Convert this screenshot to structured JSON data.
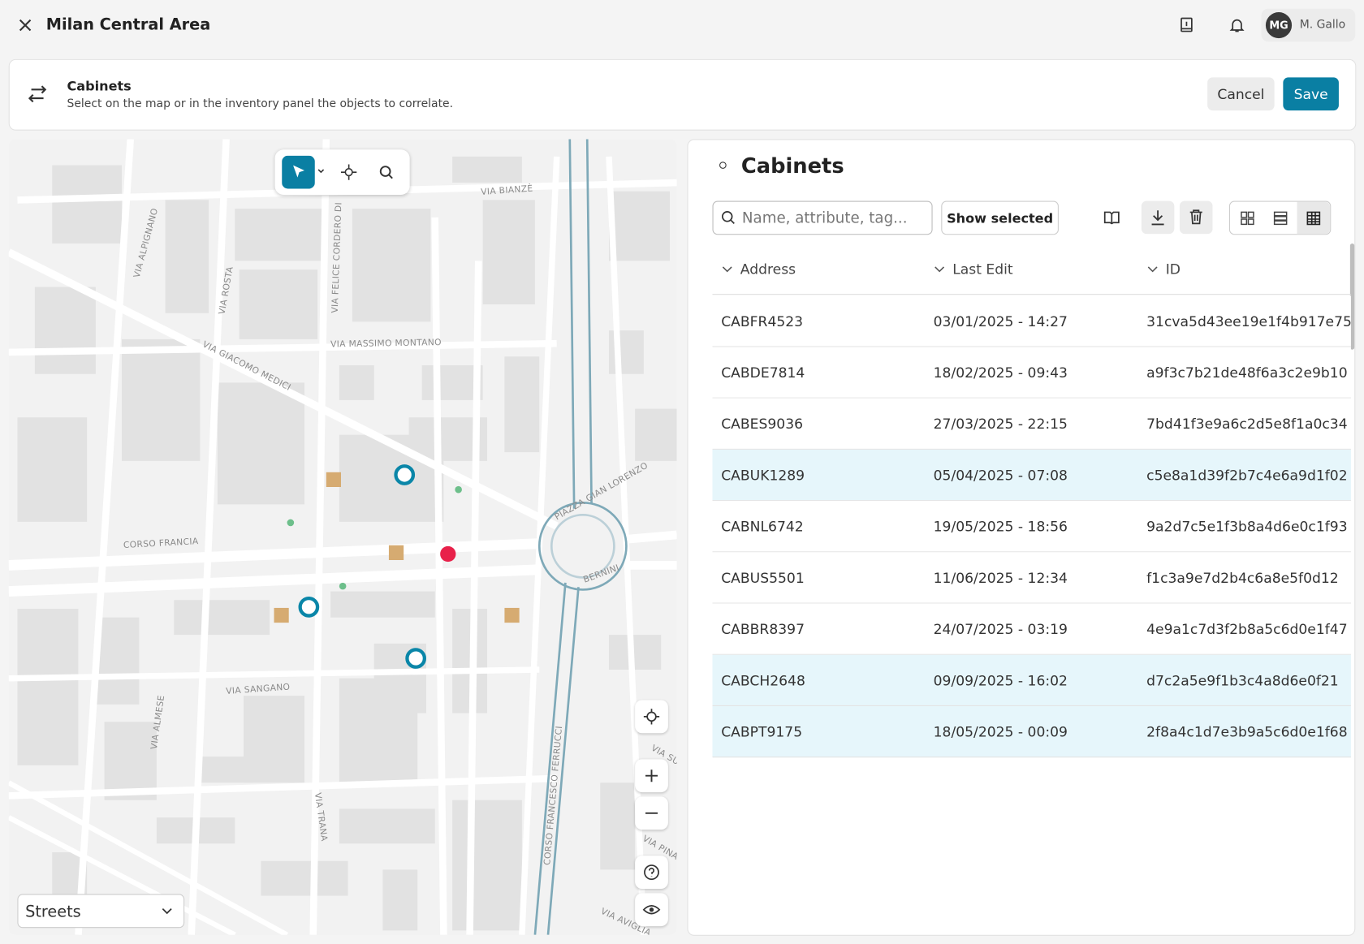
{
  "header": {
    "title": "Milan Central Area",
    "user_initials": "MG",
    "user_name": "M. Gallo"
  },
  "banner": {
    "title": "Cabinets",
    "subtitle": "Select on the map or in the inventory panel the objects to correlate.",
    "cancel": "Cancel",
    "save": "Save"
  },
  "map": {
    "labels": [
      "VIA BIANZÈ",
      "VIA ALPIGNANO",
      "VIA ROSTA",
      "VIA FELICE CORDERO DI",
      "VIA MASSIMO MONTANO",
      "VIA GIACOMO MEDICI",
      "CORSO FRANCIA",
      "PIAZZA GIAN LORENZO",
      "BERNINI",
      "VIA SANGANO",
      "VIA ALMESE",
      "VIA TRANA",
      "CORSO FRANCESCO FERRUCCI",
      "VIA SU",
      "VIA PINA",
      "VIA AVIGLIA"
    ],
    "layer": "Streets"
  },
  "panel": {
    "title": "Cabinets",
    "search_placeholder": "Name, attribute, tag...",
    "show_selected": "Show selected",
    "table": {
      "columns": [
        "Address",
        "Last Edit",
        "ID"
      ],
      "rows": [
        {
          "cells": [
            "CABFR4523",
            "03/01/2025 - 14:27",
            "31cva5d43ee19e1f4b917e75"
          ],
          "selected": false
        },
        {
          "cells": [
            "CABDE7814",
            "18/02/2025 - 09:43",
            "a9f3c7b21de48f6a3c2e9b10"
          ],
          "selected": false
        },
        {
          "cells": [
            "CABES9036",
            "27/03/2025 - 22:15",
            "7bd41f3e9a6c2d5e8f1a0c34"
          ],
          "selected": false
        },
        {
          "cells": [
            "CABUK1289",
            "05/04/2025 - 07:08",
            "c5e8a1d39f2b7c4e6a9d1f02"
          ],
          "selected": true
        },
        {
          "cells": [
            "CABNL6742",
            "19/05/2025 - 18:56",
            "9a2d7c5e1f3b8a4d6e0c1f93"
          ],
          "selected": false
        },
        {
          "cells": [
            "CABUS5501",
            "11/06/2025 - 12:34",
            "f1c3a9e7d2b4c6a8e5f0d12"
          ],
          "selected": false
        },
        {
          "cells": [
            "CABBR8397",
            "24/07/2025 - 03:19",
            "4e9a1c7d3f2b8a5c6d0e1f47"
          ],
          "selected": false
        },
        {
          "cells": [
            "CABCH2648",
            "09/09/2025 - 16:02",
            "d7c2a5e9f1b3c4a8d6e0f21"
          ],
          "selected": true
        },
        {
          "cells": [
            "CABPT9175",
            "18/05/2025 - 00:09",
            "2f8a4c1d7e3b9a5c6d0e1f68"
          ],
          "selected": true
        }
      ]
    }
  }
}
